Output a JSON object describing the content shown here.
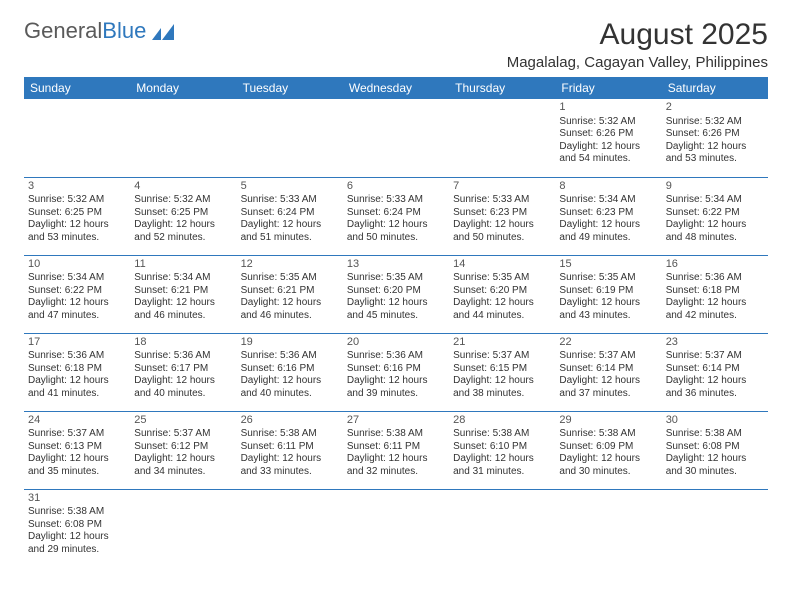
{
  "logo": {
    "text1": "General",
    "text2": "Blue",
    "color1": "#5a5a5a",
    "color2": "#2f78bd"
  },
  "title": "August 2025",
  "location": "Magalalag, Cagayan Valley, Philippines",
  "colors": {
    "header_bg": "#2f78bd",
    "header_fg": "#ffffff",
    "border": "#2f78bd"
  },
  "day_headers": [
    "Sunday",
    "Monday",
    "Tuesday",
    "Wednesday",
    "Thursday",
    "Friday",
    "Saturday"
  ],
  "weeks": [
    [
      null,
      null,
      null,
      null,
      null,
      {
        "n": "1",
        "sr": "5:32 AM",
        "ss": "6:26 PM",
        "dl": "12 hours and 54 minutes."
      },
      {
        "n": "2",
        "sr": "5:32 AM",
        "ss": "6:26 PM",
        "dl": "12 hours and 53 minutes."
      }
    ],
    [
      {
        "n": "3",
        "sr": "5:32 AM",
        "ss": "6:25 PM",
        "dl": "12 hours and 53 minutes."
      },
      {
        "n": "4",
        "sr": "5:32 AM",
        "ss": "6:25 PM",
        "dl": "12 hours and 52 minutes."
      },
      {
        "n": "5",
        "sr": "5:33 AM",
        "ss": "6:24 PM",
        "dl": "12 hours and 51 minutes."
      },
      {
        "n": "6",
        "sr": "5:33 AM",
        "ss": "6:24 PM",
        "dl": "12 hours and 50 minutes."
      },
      {
        "n": "7",
        "sr": "5:33 AM",
        "ss": "6:23 PM",
        "dl": "12 hours and 50 minutes."
      },
      {
        "n": "8",
        "sr": "5:34 AM",
        "ss": "6:23 PM",
        "dl": "12 hours and 49 minutes."
      },
      {
        "n": "9",
        "sr": "5:34 AM",
        "ss": "6:22 PM",
        "dl": "12 hours and 48 minutes."
      }
    ],
    [
      {
        "n": "10",
        "sr": "5:34 AM",
        "ss": "6:22 PM",
        "dl": "12 hours and 47 minutes."
      },
      {
        "n": "11",
        "sr": "5:34 AM",
        "ss": "6:21 PM",
        "dl": "12 hours and 46 minutes."
      },
      {
        "n": "12",
        "sr": "5:35 AM",
        "ss": "6:21 PM",
        "dl": "12 hours and 46 minutes."
      },
      {
        "n": "13",
        "sr": "5:35 AM",
        "ss": "6:20 PM",
        "dl": "12 hours and 45 minutes."
      },
      {
        "n": "14",
        "sr": "5:35 AM",
        "ss": "6:20 PM",
        "dl": "12 hours and 44 minutes."
      },
      {
        "n": "15",
        "sr": "5:35 AM",
        "ss": "6:19 PM",
        "dl": "12 hours and 43 minutes."
      },
      {
        "n": "16",
        "sr": "5:36 AM",
        "ss": "6:18 PM",
        "dl": "12 hours and 42 minutes."
      }
    ],
    [
      {
        "n": "17",
        "sr": "5:36 AM",
        "ss": "6:18 PM",
        "dl": "12 hours and 41 minutes."
      },
      {
        "n": "18",
        "sr": "5:36 AM",
        "ss": "6:17 PM",
        "dl": "12 hours and 40 minutes."
      },
      {
        "n": "19",
        "sr": "5:36 AM",
        "ss": "6:16 PM",
        "dl": "12 hours and 40 minutes."
      },
      {
        "n": "20",
        "sr": "5:36 AM",
        "ss": "6:16 PM",
        "dl": "12 hours and 39 minutes."
      },
      {
        "n": "21",
        "sr": "5:37 AM",
        "ss": "6:15 PM",
        "dl": "12 hours and 38 minutes."
      },
      {
        "n": "22",
        "sr": "5:37 AM",
        "ss": "6:14 PM",
        "dl": "12 hours and 37 minutes."
      },
      {
        "n": "23",
        "sr": "5:37 AM",
        "ss": "6:14 PM",
        "dl": "12 hours and 36 minutes."
      }
    ],
    [
      {
        "n": "24",
        "sr": "5:37 AM",
        "ss": "6:13 PM",
        "dl": "12 hours and 35 minutes."
      },
      {
        "n": "25",
        "sr": "5:37 AM",
        "ss": "6:12 PM",
        "dl": "12 hours and 34 minutes."
      },
      {
        "n": "26",
        "sr": "5:38 AM",
        "ss": "6:11 PM",
        "dl": "12 hours and 33 minutes."
      },
      {
        "n": "27",
        "sr": "5:38 AM",
        "ss": "6:11 PM",
        "dl": "12 hours and 32 minutes."
      },
      {
        "n": "28",
        "sr": "5:38 AM",
        "ss": "6:10 PM",
        "dl": "12 hours and 31 minutes."
      },
      {
        "n": "29",
        "sr": "5:38 AM",
        "ss": "6:09 PM",
        "dl": "12 hours and 30 minutes."
      },
      {
        "n": "30",
        "sr": "5:38 AM",
        "ss": "6:08 PM",
        "dl": "12 hours and 30 minutes."
      }
    ],
    [
      {
        "n": "31",
        "sr": "5:38 AM",
        "ss": "6:08 PM",
        "dl": "12 hours and 29 minutes."
      },
      null,
      null,
      null,
      null,
      null,
      null
    ]
  ],
  "labels": {
    "sunrise": "Sunrise: ",
    "sunset": "Sunset: ",
    "daylight": "Daylight: "
  }
}
